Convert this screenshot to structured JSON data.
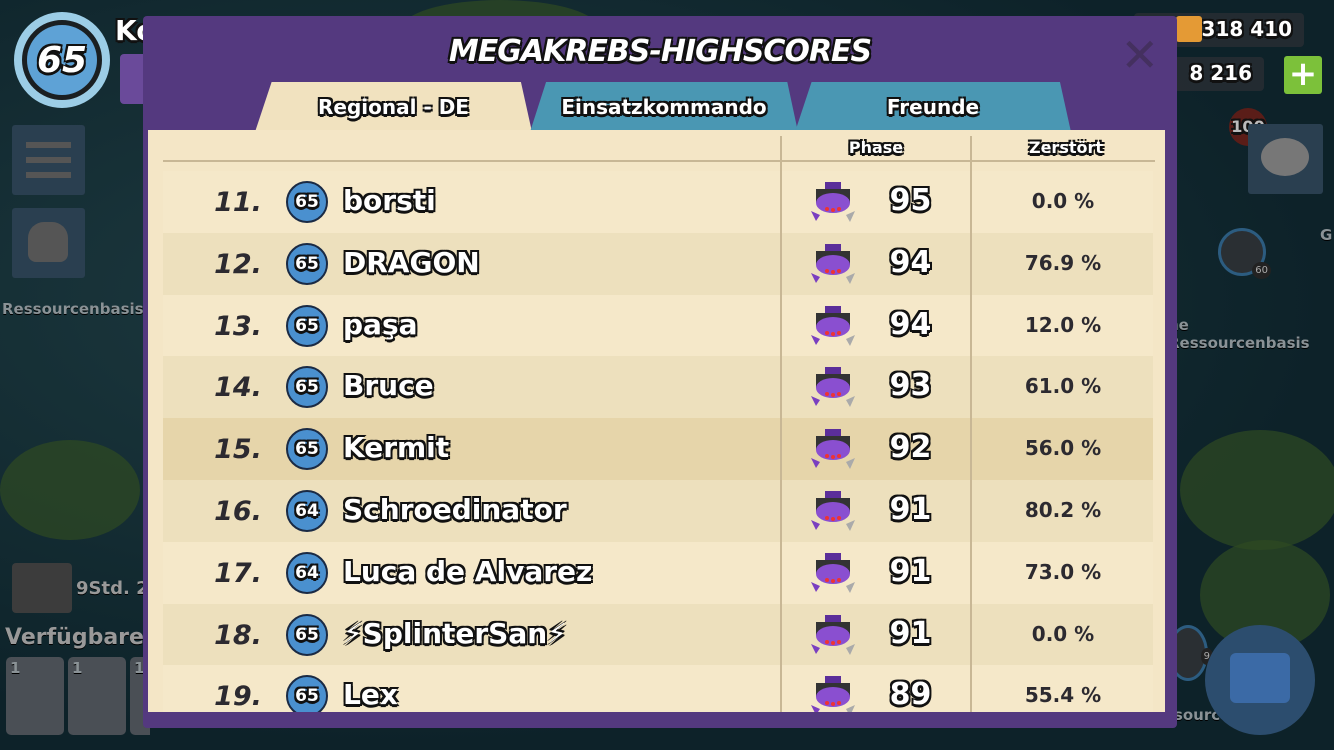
{
  "hud": {
    "player_level": "65",
    "player_name": "Ko",
    "resource_gold": "1 318 410",
    "resource_diamonds": "8 216",
    "badge_100": "100",
    "side_label_left": "Ressourcenbasis",
    "side_label_right": "ne Ressourcenbasis",
    "side_label_right2": "G",
    "chest_timer": "9Std. 2",
    "available_label": "Verfügbare",
    "unit_counts": [
      "1",
      "1",
      "1"
    ],
    "map_badge_60": "60",
    "map_badge_9": "9",
    "bottom_label": "ssourcen"
  },
  "modal": {
    "title": "MEGAKREBS-HIGHSCORES",
    "tabs": [
      {
        "label": "Regional - DE",
        "active": true
      },
      {
        "label": "Einsatzkommando",
        "active": false
      },
      {
        "label": "Freunde",
        "active": false
      }
    ],
    "columns": {
      "phase": "Phase",
      "destroyed": "Zerstört"
    },
    "rows": [
      {
        "rank": "11.",
        "level": "65",
        "name": "borsti",
        "phase": "95",
        "destroyed": "0.0 %"
      },
      {
        "rank": "12.",
        "level": "65",
        "name": "DRAGON",
        "phase": "94",
        "destroyed": "76.9 %"
      },
      {
        "rank": "13.",
        "level": "65",
        "name": "paşa",
        "phase": "94",
        "destroyed": "12.0 %"
      },
      {
        "rank": "14.",
        "level": "65",
        "name": "Bruce",
        "phase": "93",
        "destroyed": "61.0 %"
      },
      {
        "rank": "15.",
        "level": "65",
        "name": "Kermit",
        "phase": "92",
        "destroyed": "56.0 %",
        "highlighted": true
      },
      {
        "rank": "16.",
        "level": "64",
        "name": "Schroedinator",
        "phase": "91",
        "destroyed": "80.2 %"
      },
      {
        "rank": "17.",
        "level": "64",
        "name": "Luca de Alvarez",
        "phase": "91",
        "destroyed": "73.0 %"
      },
      {
        "rank": "18.",
        "level": "65",
        "name": "⚡SplinterSan⚡",
        "phase": "91",
        "destroyed": "0.0 %"
      },
      {
        "rank": "19.",
        "level": "65",
        "name": "Lex",
        "phase": "89",
        "destroyed": "55.4 %"
      }
    ]
  },
  "colors": {
    "modal": "#54397f",
    "paper": "#f4e6c6",
    "tab_inactive": "#4a97b3",
    "highlight_row": "#e6d5aa"
  }
}
